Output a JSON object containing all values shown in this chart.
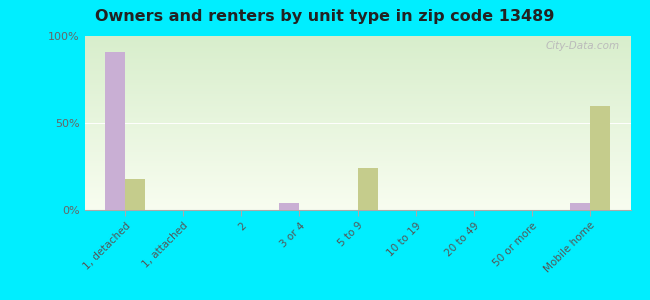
{
  "title": "Owners and renters by unit type in zip code 13489",
  "categories": [
    "1, detached",
    "1, attached",
    "2",
    "3 or 4",
    "5 to 9",
    "10 to 19",
    "20 to 49",
    "50 or more",
    "Mobile home"
  ],
  "owner_values": [
    91,
    0,
    0,
    4,
    0,
    0,
    0,
    0,
    4
  ],
  "renter_values": [
    18,
    0,
    0,
    0,
    24,
    0,
    0,
    0,
    60
  ],
  "owner_color": "#c9afd4",
  "renter_color": "#c5cc8c",
  "outer_background": "#00eeff",
  "ylim": [
    0,
    100
  ],
  "yticks": [
    0,
    50,
    100
  ],
  "ytick_labels": [
    "0%",
    "50%",
    "100%"
  ],
  "bar_width": 0.35,
  "watermark": "City-Data.com"
}
